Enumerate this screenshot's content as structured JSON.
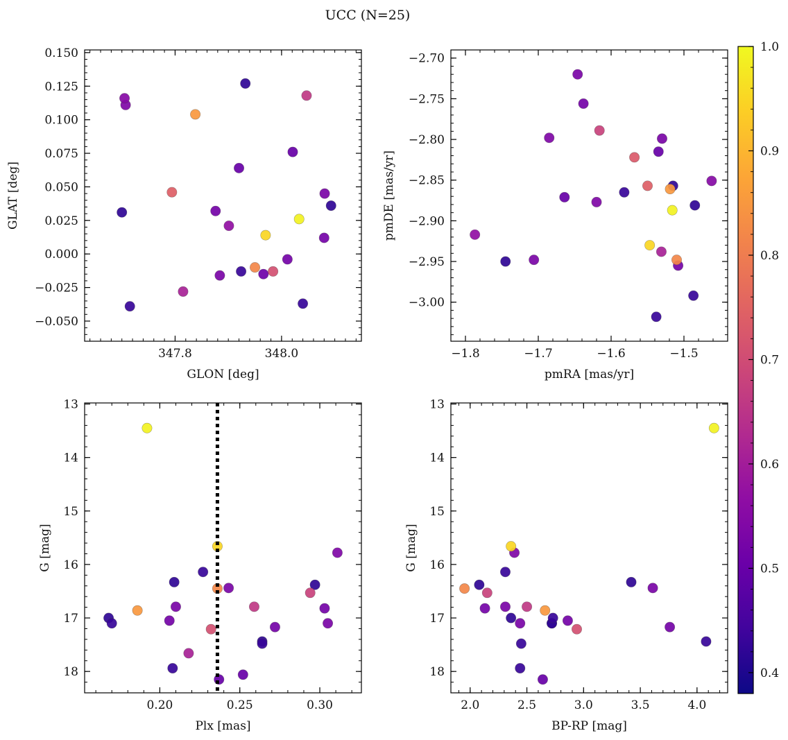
{
  "figure_title": "UCC (N=25)",
  "chart_data": [
    {
      "id": "pos",
      "type": "scatter",
      "xlabel": "GLON [deg]",
      "ylabel": "GLAT [deg]",
      "xlim": [
        347.63,
        348.15
      ],
      "ylim": [
        -0.065,
        0.152
      ],
      "xticks": [
        347.8,
        348.0
      ],
      "xtick_labels": [
        "347.8",
        "348.0"
      ],
      "yticks": [
        -0.05,
        -0.025,
        0.0,
        0.025,
        0.05,
        0.075,
        0.1,
        0.125,
        0.15
      ],
      "ytick_labels": [
        "−0.050",
        "−0.025",
        "0.000",
        "0.025",
        "0.050",
        "0.075",
        "0.100",
        "0.125",
        "0.150"
      ],
      "x_minor_step": 0.02,
      "y_minor_step": 0.005,
      "x": [
        347.7,
        347.705,
        347.707,
        347.715,
        347.838,
        347.794,
        347.815,
        347.876,
        347.901,
        347.884,
        347.92,
        347.924,
        347.932,
        347.97,
        347.95,
        347.966,
        347.984,
        348.021,
        348.011,
        348.033,
        348.04,
        348.047,
        348.081,
        348.093,
        348.08
      ],
      "y": [
        0.031,
        0.116,
        0.111,
        -0.039,
        0.104,
        0.046,
        -0.028,
        0.032,
        0.021,
        -0.016,
        0.064,
        -0.013,
        0.127,
        0.014,
        -0.01,
        -0.015,
        -0.013,
        0.076,
        -0.004,
        0.026,
        -0.037,
        0.118,
        0.045,
        0.036,
        0.012
      ],
      "color_values": [
        0.42,
        0.55,
        0.54,
        0.43,
        0.85,
        0.74,
        0.61,
        0.52,
        0.57,
        0.53,
        0.5,
        0.43,
        0.42,
        0.95,
        0.82,
        0.51,
        0.71,
        0.5,
        0.52,
        0.99,
        0.43,
        0.66,
        0.53,
        0.42,
        0.52
      ]
    },
    {
      "id": "pm",
      "type": "scatter",
      "xlabel": "pmRA [mas/yr]",
      "ylabel": "pmDE [mas/yr]",
      "xlim": [
        -1.82,
        -1.44
      ],
      "ylim": [
        -3.048,
        -2.69
      ],
      "xticks": [
        -1.8,
        -1.7,
        -1.6,
        -1.5
      ],
      "xtick_labels": [
        "−1.8",
        "−1.7",
        "−1.6",
        "−1.5"
      ],
      "yticks": [
        -3.0,
        -2.95,
        -2.9,
        -2.85,
        -2.8,
        -2.75,
        -2.7
      ],
      "ytick_labels": [
        "−3.00",
        "−2.95",
        "−2.90",
        "−2.85",
        "−2.80",
        "−2.75",
        "−2.70"
      ],
      "x_minor_step": 0.02,
      "y_minor_step": 0.01,
      "x": [
        -1.787,
        -1.745,
        -1.706,
        -1.685,
        -1.664,
        -1.646,
        -1.638,
        -1.62,
        -1.616,
        -1.582,
        -1.568,
        -1.55,
        -1.547,
        -1.538,
        -1.535,
        -1.531,
        -1.53,
        -1.519,
        -1.516,
        -1.515,
        -1.51,
        -1.508,
        -1.487,
        -1.485,
        -1.462
      ],
      "y": [
        -2.917,
        -2.95,
        -2.948,
        -2.798,
        -2.871,
        -2.72,
        -2.756,
        -2.877,
        -2.789,
        -2.865,
        -2.822,
        -2.857,
        -2.93,
        -3.018,
        -2.815,
        -2.938,
        -2.799,
        -2.861,
        -2.887,
        -2.857,
        -2.948,
        -2.955,
        -2.992,
        -2.881,
        -2.851
      ],
      "color_values": [
        0.57,
        0.42,
        0.53,
        0.54,
        0.5,
        0.53,
        0.52,
        0.54,
        0.68,
        0.43,
        0.73,
        0.74,
        0.95,
        0.43,
        0.5,
        0.61,
        0.53,
        0.85,
        0.99,
        0.42,
        0.82,
        0.52,
        0.43,
        0.42,
        0.55
      ]
    },
    {
      "id": "plx",
      "type": "scatter",
      "xlabel": "Plx [mas]",
      "ylabel": "G [mag]",
      "xlim": [
        0.153,
        0.326
      ],
      "ylim": [
        18.4,
        12.98
      ],
      "y_inverted": true,
      "xticks": [
        0.2,
        0.25,
        0.3
      ],
      "xtick_labels": [
        "0.20",
        "0.25",
        "0.30"
      ],
      "yticks": [
        13,
        14,
        15,
        16,
        17,
        18
      ],
      "ytick_labels": [
        "13",
        "14",
        "15",
        "16",
        "17",
        "18"
      ],
      "x_minor_step": 0.01,
      "y_minor_step": 0.2,
      "vline": 0.236,
      "x": [
        0.192,
        0.236,
        0.168,
        0.17,
        0.186,
        0.206,
        0.21,
        0.209,
        0.208,
        0.218,
        0.227,
        0.232,
        0.236,
        0.237,
        0.243,
        0.252,
        0.259,
        0.264,
        0.264,
        0.272,
        0.294,
        0.297,
        0.303,
        0.305,
        0.311
      ],
      "y": [
        13.45,
        15.66,
        17.0,
        17.1,
        16.86,
        17.05,
        16.79,
        16.33,
        17.94,
        17.66,
        16.14,
        17.21,
        16.45,
        18.15,
        16.44,
        18.06,
        16.79,
        17.44,
        17.48,
        17.17,
        16.53,
        16.38,
        16.82,
        17.1,
        15.78
      ],
      "color_values": [
        0.99,
        0.95,
        0.42,
        0.43,
        0.85,
        0.52,
        0.53,
        0.42,
        0.43,
        0.61,
        0.43,
        0.71,
        0.82,
        0.5,
        0.53,
        0.5,
        0.66,
        0.42,
        0.43,
        0.52,
        0.68,
        0.42,
        0.52,
        0.53,
        0.54
      ]
    },
    {
      "id": "cmd",
      "type": "scatter",
      "xlabel": "BP-RP [mag]",
      "ylabel": "G [mag]",
      "xlim": [
        1.83,
        4.27
      ],
      "ylim": [
        18.4,
        12.98
      ],
      "y_inverted": true,
      "xticks": [
        2.0,
        2.5,
        3.0,
        3.5,
        4.0
      ],
      "xtick_labels": [
        "2.0",
        "2.5",
        "3.0",
        "3.5",
        "4.0"
      ],
      "yticks": [
        13,
        14,
        15,
        16,
        17,
        18
      ],
      "ytick_labels": [
        "13",
        "14",
        "15",
        "16",
        "17",
        "18"
      ],
      "x_minor_step": 0.1,
      "y_minor_step": 0.2,
      "x": [
        4.15,
        2.36,
        2.39,
        1.95,
        2.08,
        2.15,
        2.13,
        2.31,
        2.31,
        2.44,
        2.45,
        2.5,
        2.66,
        2.64,
        2.72,
        2.73,
        2.86,
        2.94,
        3.42,
        3.61,
        3.76,
        4.08,
        2.72,
        2.36,
        2.44
      ],
      "y": [
        13.45,
        15.66,
        15.78,
        16.45,
        16.38,
        16.53,
        16.82,
        16.14,
        16.79,
        17.1,
        17.48,
        16.79,
        16.86,
        18.15,
        17.1,
        17.0,
        17.05,
        17.21,
        16.33,
        16.44,
        17.17,
        17.44,
        17.1,
        17.0,
        17.94
      ],
      "color_values": [
        0.99,
        0.95,
        0.54,
        0.82,
        0.42,
        0.68,
        0.52,
        0.43,
        0.53,
        0.53,
        0.43,
        0.66,
        0.85,
        0.5,
        0.42,
        0.43,
        0.52,
        0.71,
        0.42,
        0.53,
        0.52,
        0.43,
        0.42,
        0.42,
        0.43
      ]
    }
  ],
  "colorbar": {
    "cmap": "plasma",
    "range": [
      0.38,
      1.0
    ],
    "ticks": [
      0.4,
      0.5,
      0.6,
      0.7,
      0.8,
      0.9,
      1.0
    ],
    "tick_labels": [
      "0.4",
      "0.5",
      "0.6",
      "0.7",
      "0.8",
      "0.9",
      "1.0"
    ]
  }
}
